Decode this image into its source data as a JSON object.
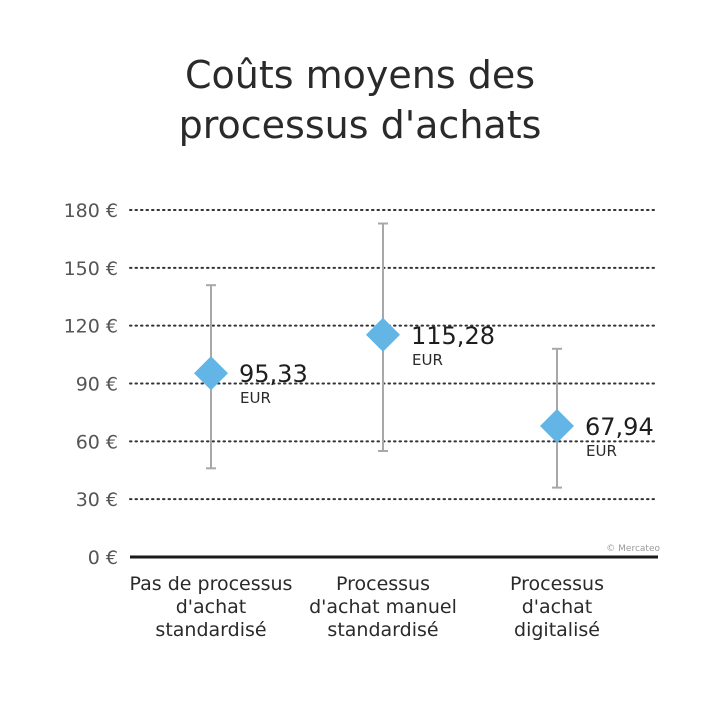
{
  "chart_data": {
    "type": "scatter",
    "title_lines": [
      "Coûts moyens des",
      "processus d'achats"
    ],
    "y_ticks": [
      0,
      30,
      60,
      90,
      120,
      150,
      180
    ],
    "y_tick_suffix": " €",
    "ylim": [
      0,
      180
    ],
    "grid": true,
    "categories": [
      [
        "Pas de processus",
        "d'achat",
        "standardisé"
      ],
      [
        "Processus",
        "d'achat manuel",
        "standardisé"
      ],
      [
        "Processus",
        "d'achat",
        "digitalisé"
      ]
    ],
    "points": [
      {
        "value": 95.33,
        "label": "95,33",
        "low": 46,
        "high": 141
      },
      {
        "value": 115.28,
        "label": "115,28",
        "low": 55,
        "high": 173
      },
      {
        "value": 67.94,
        "label": "67,94",
        "low": 36,
        "high": 108
      }
    ],
    "unit": "EUR",
    "credit": "© Mercateo",
    "colors": {
      "marker": "#62b5e5",
      "errorbar": "#a8a8a8",
      "grid": "#333333",
      "axis": "#1a1a1a"
    }
  }
}
